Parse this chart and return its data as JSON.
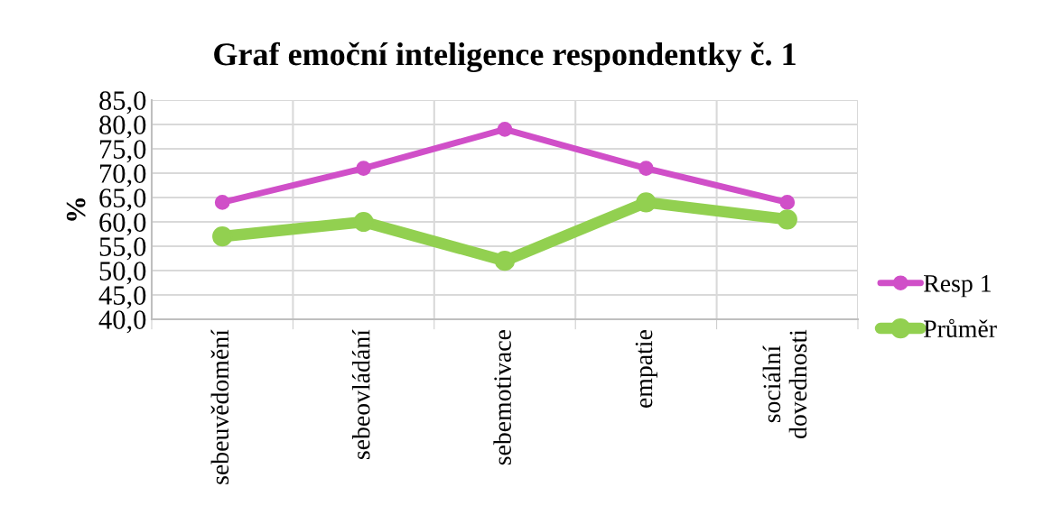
{
  "chart_data": {
    "type": "line",
    "title": "Graf emoční inteligence respondentky č. 1",
    "ylabel": "%",
    "categories": [
      "sebeuvědomění",
      "sebeovládání",
      "sebemotivace",
      "empatie",
      "sociální\ndovednosti"
    ],
    "series": [
      {
        "name": "Resp 1",
        "color": "#d04fc8",
        "values": [
          64,
          71,
          79,
          71,
          64
        ]
      },
      {
        "name": "Průměr",
        "color": "#92d050",
        "values": [
          57,
          60,
          52,
          64,
          60.5
        ]
      }
    ],
    "ylim": [
      40,
      85
    ],
    "yticks": [
      {
        "value": 40,
        "label": "40,0"
      },
      {
        "value": 45,
        "label": "45,0"
      },
      {
        "value": 50,
        "label": "50,0"
      },
      {
        "value": 55,
        "label": "55,0"
      },
      {
        "value": 60,
        "label": "60,0"
      },
      {
        "value": 65,
        "label": "65,0"
      },
      {
        "value": 70,
        "label": "70,0"
      },
      {
        "value": 75,
        "label": "75,0"
      },
      {
        "value": 80,
        "label": "80,0"
      },
      {
        "value": 85,
        "label": "85,0"
      }
    ],
    "grid": true,
    "legend": "right",
    "marker": "circle",
    "line_style": "solid"
  }
}
